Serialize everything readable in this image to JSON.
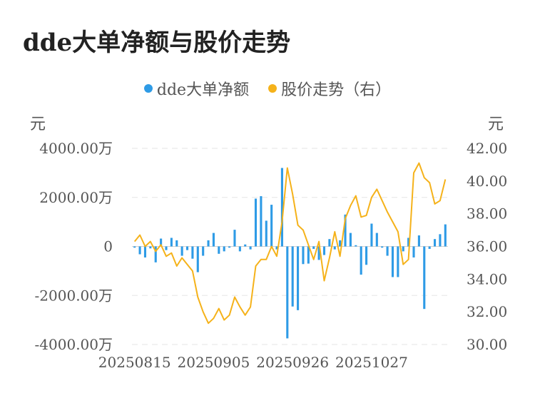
{
  "title": "dde大单净额与股价走势",
  "legend": [
    {
      "label": "dde大单净额",
      "color": "#2e9be6"
    },
    {
      "label": "股价走势（右）",
      "color": "#f5b21a"
    }
  ],
  "unit_left": "元",
  "unit_right": "元",
  "chart_data": {
    "type": "bar",
    "title": "dde大单净额与股价走势",
    "x_tick_labels": [
      "20250815",
      "20250905",
      "20250926",
      "20251027"
    ],
    "y_left": {
      "ticks": [
        4000,
        2000,
        0,
        -2000,
        -4000
      ],
      "tick_labels": [
        "4000.00万",
        "2000.00万",
        "0",
        "-2000.00万",
        "-4000.00万"
      ],
      "range": [
        -4000,
        4000
      ]
    },
    "y_right": {
      "ticks": [
        42,
        40,
        38,
        36,
        34,
        32,
        30
      ],
      "tick_labels": [
        "42.00",
        "40.00",
        "38.00",
        "36.00",
        "34.00",
        "32.00",
        "30.00"
      ],
      "range": [
        30,
        42
      ]
    },
    "grid": true,
    "legend_position": "top-center",
    "series": [
      {
        "name": "dde大单净额",
        "type": "bar",
        "axis": "left",
        "color": "#2e9be6",
        "values": [
          -50,
          -320,
          -450,
          -80,
          -650,
          320,
          -150,
          350,
          250,
          -380,
          -150,
          -500,
          -1050,
          -380,
          250,
          550,
          -300,
          -200,
          -50,
          680,
          -200,
          80,
          -120,
          1950,
          2050,
          1050,
          1700,
          -120,
          3200,
          -3750,
          -2450,
          -2600,
          -720,
          -700,
          -100,
          -550,
          -350,
          300,
          -120,
          250,
          1300,
          550,
          50,
          -1150,
          -750,
          930,
          550,
          -50,
          -380,
          -1250,
          -1250,
          -200,
          350,
          -450,
          450,
          -2550,
          -100,
          300,
          500,
          900
        ]
      },
      {
        "name": "股价走势（右）",
        "type": "line",
        "axis": "right",
        "color": "#f5b21a",
        "values": [
          36.3,
          36.7,
          36.0,
          36.3,
          35.7,
          36.1,
          35.4,
          35.6,
          34.8,
          35.3,
          34.9,
          34.5,
          32.9,
          32.0,
          31.3,
          31.6,
          32.2,
          31.5,
          31.8,
          32.9,
          32.3,
          31.8,
          32.3,
          34.8,
          35.2,
          35.2,
          36.0,
          35.4,
          37.5,
          40.8,
          39.2,
          37.3,
          37.0,
          36.1,
          35.2,
          36.3,
          33.9,
          35.3,
          36.9,
          35.4,
          37.7,
          38.5,
          39.1,
          37.8,
          37.9,
          39.0,
          39.5,
          38.8,
          38.1,
          37.5,
          36.9,
          34.9,
          35.2,
          40.5,
          41.1,
          40.2,
          39.9,
          38.6,
          38.8,
          40.1
        ]
      }
    ],
    "x_tick_indices": [
      0,
      15,
      30,
      45
    ]
  }
}
